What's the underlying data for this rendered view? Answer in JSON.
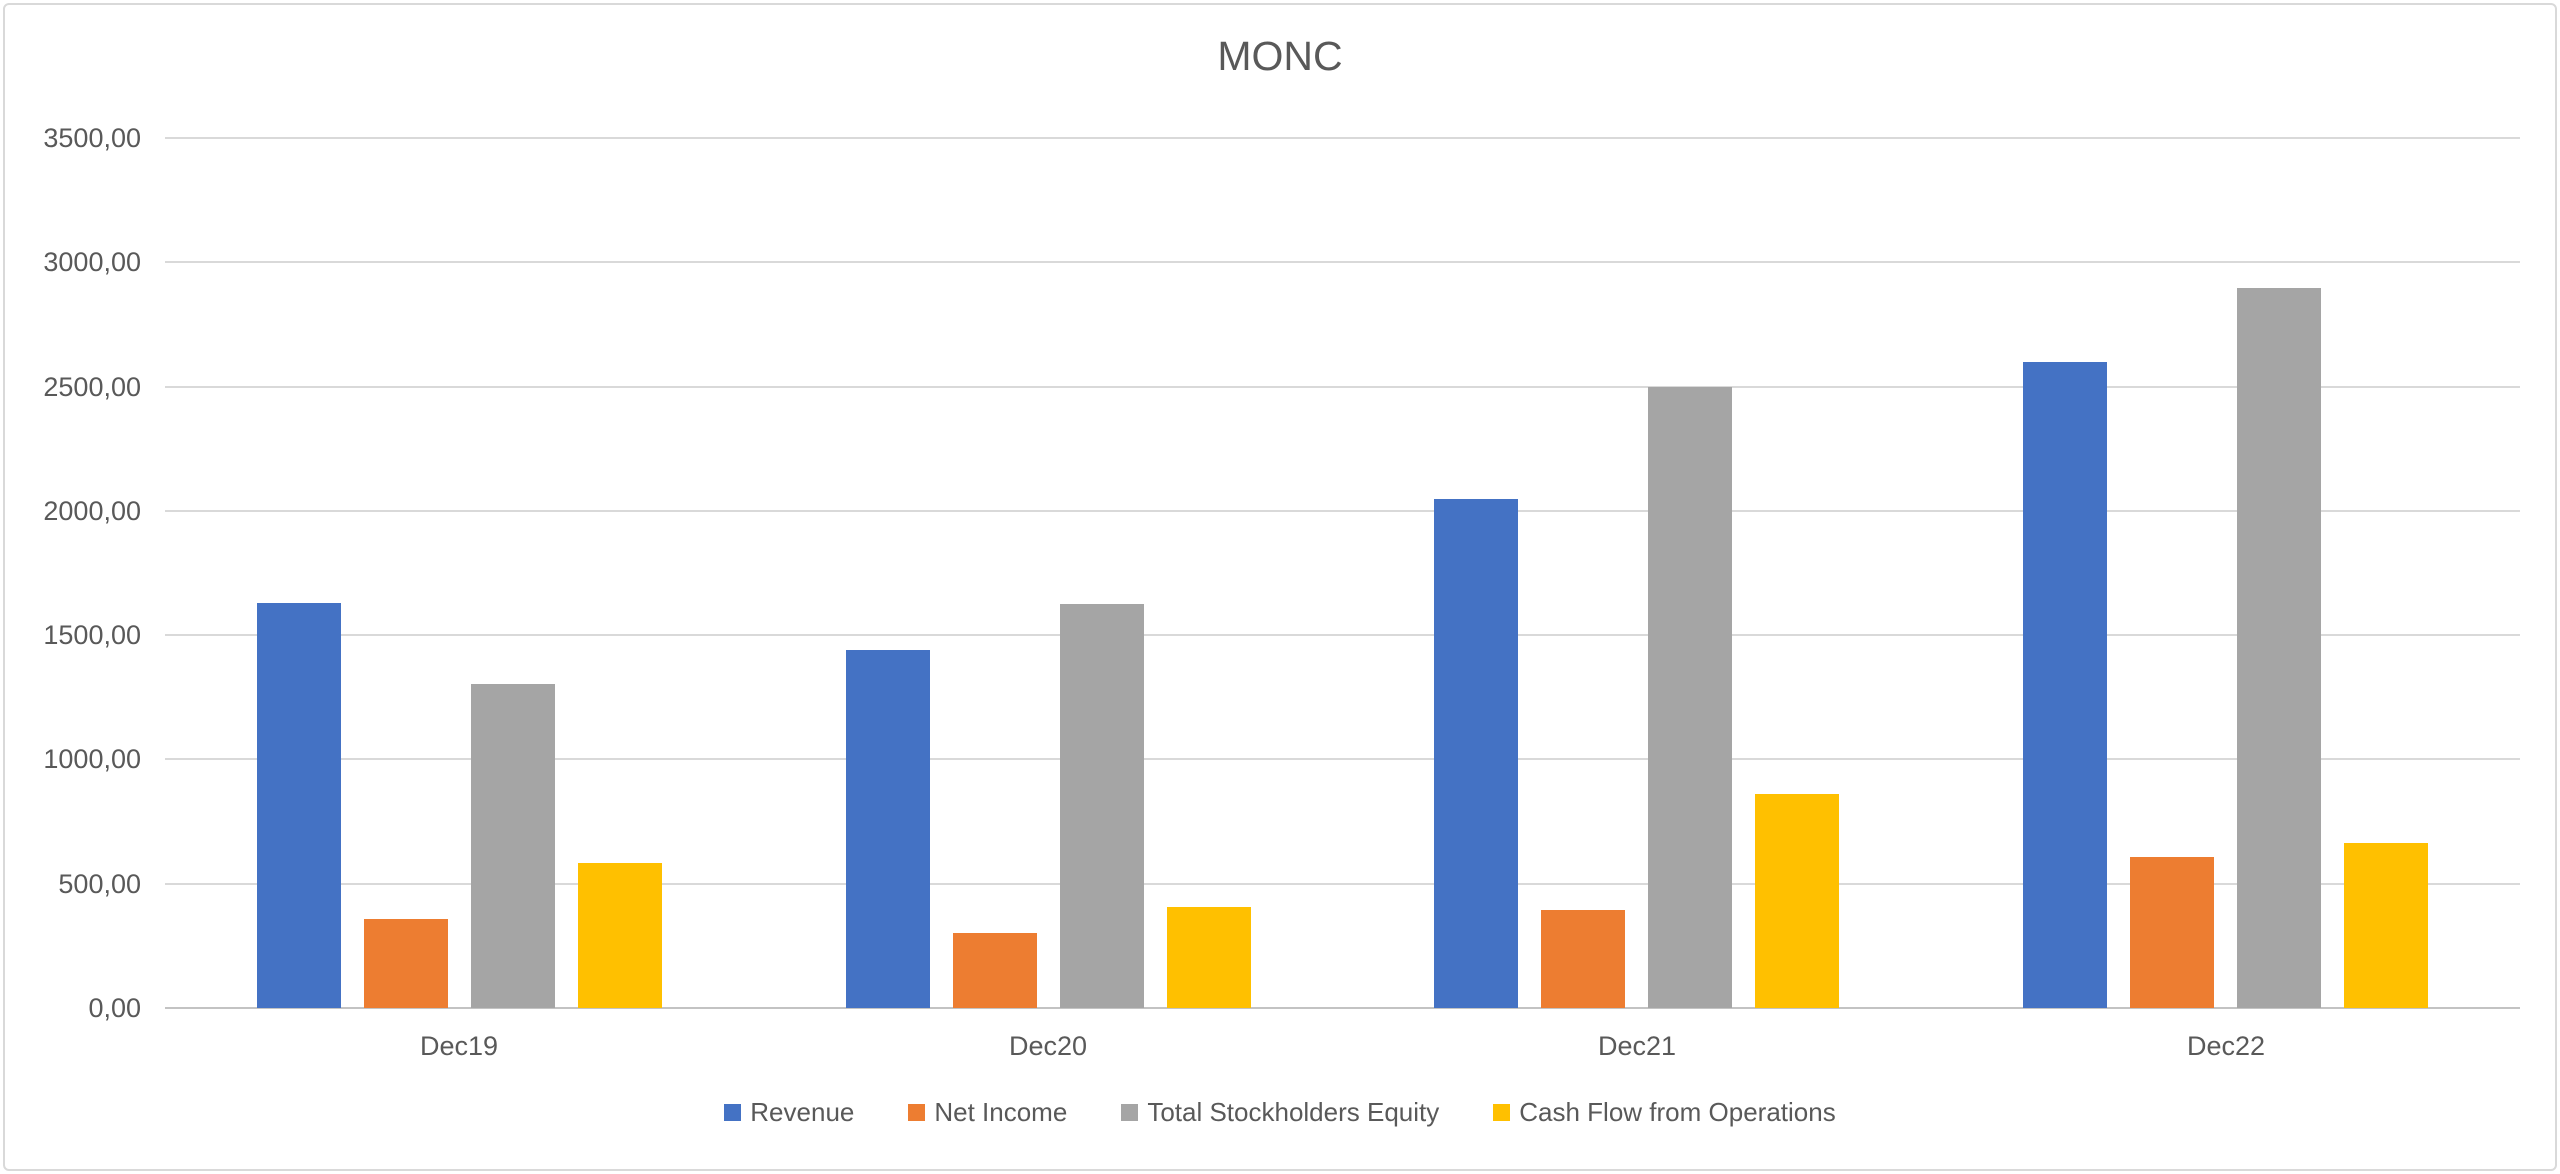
{
  "chart_data": {
    "type": "bar",
    "title": "MONC",
    "categories": [
      "Dec19",
      "Dec20",
      "Dec21",
      "Dec22"
    ],
    "series": [
      {
        "name": "Revenue",
        "color": "#4472C4",
        "values": [
          1628,
          1440,
          2046,
          2600
        ]
      },
      {
        "name": "Net Income",
        "color": "#ED7D31",
        "values": [
          358,
          300,
          395,
          607
        ]
      },
      {
        "name": "Total Stockholders Equity",
        "color": "#A5A5A5",
        "values": [
          1303,
          1625,
          2500,
          2895
        ]
      },
      {
        "name": "Cash Flow from Operations",
        "color": "#FFC000",
        "values": [
          585,
          405,
          860,
          665
        ]
      }
    ],
    "ylim": [
      0,
      3500
    ],
    "ytick_step": 500,
    "ytick_labels": [
      "3500,00",
      "3000,00",
      "2500,00",
      "2000,00",
      "1500,00",
      "1000,00",
      "500,00",
      "0,00"
    ],
    "xlabel": "",
    "ylabel": "",
    "grid": true,
    "legend_position": "bottom",
    "number_format": "decimal-comma",
    "text_color": "#595959",
    "gridline_color": "#D9D9D9"
  }
}
